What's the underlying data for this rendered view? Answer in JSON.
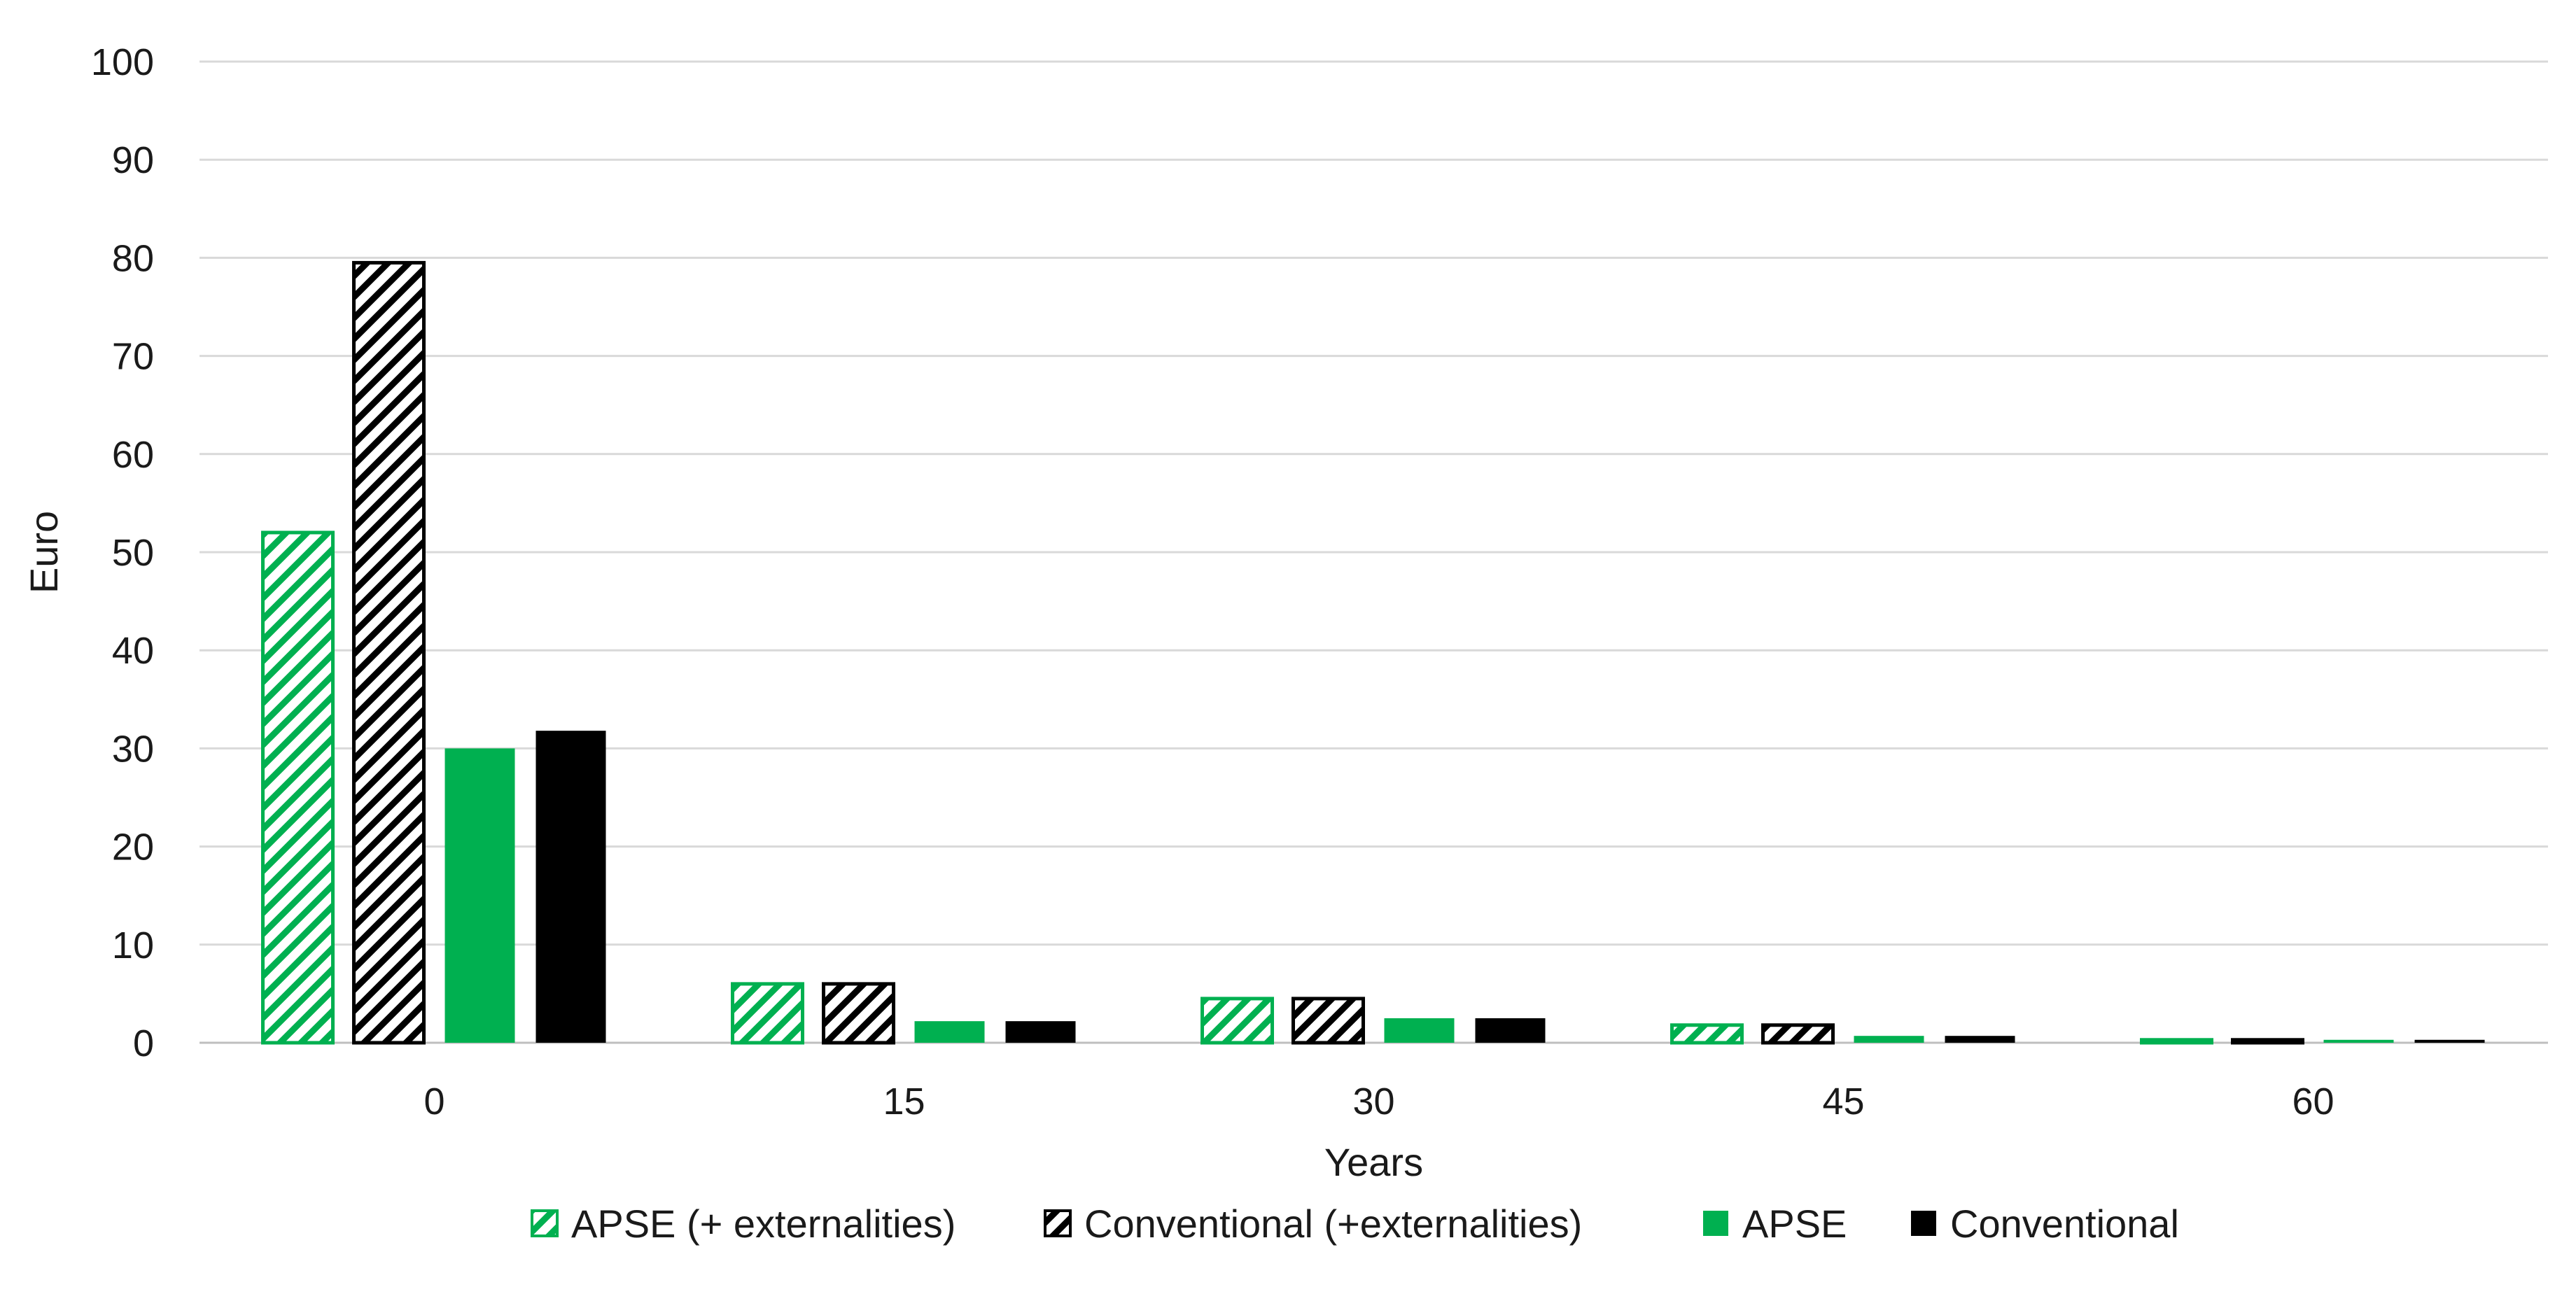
{
  "chart_data": {
    "type": "bar",
    "xlabel": "Years",
    "ylabel": "Euro",
    "categories": [
      "0",
      "15",
      "30",
      "45",
      "60"
    ],
    "ylim": [
      0,
      100
    ],
    "yticks": [
      0,
      10,
      20,
      30,
      40,
      50,
      60,
      70,
      80,
      90,
      100
    ],
    "grid": true,
    "legend_position": "bottom",
    "series": [
      {
        "name": "APSE (+ externalities)",
        "values": [
          52,
          6,
          4.5,
          1.8,
          0.3
        ],
        "color": "#00b050",
        "pattern": "hatched"
      },
      {
        "name": "Conventional (+externalities)",
        "values": [
          79.5,
          6,
          4.5,
          1.8,
          0.3
        ],
        "color": "#000000",
        "pattern": "hatched"
      },
      {
        "name": "APSE",
        "values": [
          30,
          2.2,
          2.5,
          0.7,
          0.3
        ],
        "color": "#00b050",
        "pattern": "solid"
      },
      {
        "name": "Conventional",
        "values": [
          31.8,
          2.2,
          2.5,
          0.7,
          0.3
        ],
        "color": "#000000",
        "pattern": "solid"
      }
    ]
  }
}
